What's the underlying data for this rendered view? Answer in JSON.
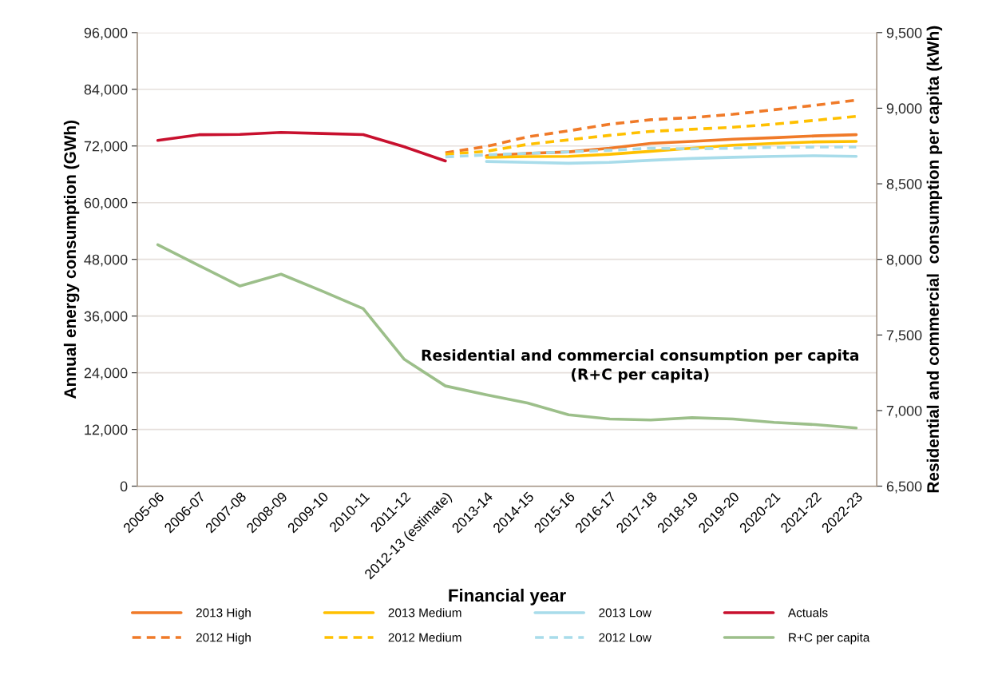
{
  "chart_data": {
    "type": "line",
    "xlabel": "Financial year",
    "ylabel": "Annual energy consumption (GWh)",
    "y2label": "Residential and commercial  consumption per capita (kWh)",
    "categories": [
      "2005-06",
      "2006-07",
      "2007-08",
      "2008-09",
      "2009-10",
      "2010-11",
      "2011-12",
      "2012-13 (estimate)",
      "2013-14",
      "2014-15",
      "2015-16",
      "2016-17",
      "2017-18",
      "2018-19",
      "2019-20",
      "2020-21",
      "2021-22",
      "2022-23"
    ],
    "series": [
      {
        "name": "2013 High",
        "color": "#f07a28",
        "line_style": "solid",
        "values": [
          null,
          null,
          null,
          null,
          null,
          null,
          null,
          null,
          69940,
          70440,
          70760,
          71530,
          72540,
          72980,
          73430,
          73760,
          74130,
          74380
        ]
      },
      {
        "name": "2013 Medium",
        "color": "#ffc000",
        "line_style": "solid",
        "values": [
          null,
          null,
          null,
          null,
          null,
          null,
          null,
          null,
          69610,
          69750,
          69800,
          70250,
          70880,
          71530,
          72170,
          72540,
          72860,
          72980
        ]
      },
      {
        "name": "2013 Low",
        "color": "#a8dcea",
        "line_style": "solid",
        "values": [
          null,
          null,
          null,
          null,
          null,
          null,
          null,
          null,
          68720,
          68530,
          68350,
          68530,
          68970,
          69360,
          69610,
          69800,
          69940,
          69800
        ]
      },
      {
        "name": "Actuals",
        "color": "#c8102e",
        "line_style": "solid",
        "values": [
          73180,
          74380,
          74450,
          74870,
          74650,
          74420,
          71830,
          68840,
          null,
          null,
          null,
          null,
          null,
          null,
          null,
          null,
          null,
          null
        ]
      },
      {
        "name": "2012 High",
        "color": "#f07a28",
        "line_style": "dashed",
        "values": [
          null,
          null,
          null,
          null,
          null,
          null,
          null,
          70560,
          71900,
          73940,
          75210,
          76610,
          77560,
          78010,
          78710,
          79670,
          80620,
          81700
        ]
      },
      {
        "name": "2012 Medium",
        "color": "#ffc000",
        "line_style": "dashed",
        "values": [
          null,
          null,
          null,
          null,
          null,
          null,
          null,
          70250,
          70880,
          72350,
          73300,
          74260,
          75090,
          75530,
          75970,
          76610,
          77440,
          78270
        ]
      },
      {
        "name": "2012 Low",
        "color": "#a8dcea",
        "line_style": "dashed",
        "values": [
          null,
          null,
          null,
          null,
          null,
          null,
          null,
          69680,
          70120,
          70440,
          70760,
          71090,
          71530,
          71390,
          71530,
          71710,
          71780,
          71780
        ]
      },
      {
        "name": "R+C per capita",
        "color": "#9cbf8a",
        "line_style": "solid",
        "axis": "y2",
        "values": [
          8097,
          7960,
          7824,
          7902,
          7790,
          7674,
          7339,
          7163,
          7104,
          7050,
          6972,
          6944,
          6938,
          6953,
          6944,
          6922,
          6907,
          6885
        ]
      }
    ],
    "ylim": [
      0,
      96000
    ],
    "yticks": [
      {
        "value": 0,
        "label": "0"
      },
      {
        "value": 12000,
        "label": "12,000"
      },
      {
        "value": 24000,
        "label": "24,000"
      },
      {
        "value": 36000,
        "label": "36,000"
      },
      {
        "value": 48000,
        "label": "48,000"
      },
      {
        "value": 60000,
        "label": "60,000"
      },
      {
        "value": 72000,
        "label": "72,000"
      },
      {
        "value": 84000,
        "label": "84,000"
      },
      {
        "value": 96000,
        "label": "96,000"
      }
    ],
    "y2lim": [
      6500,
      9500
    ],
    "y2ticks": [
      {
        "value": 6500,
        "label": "6,500"
      },
      {
        "value": 7000,
        "label": "7,000"
      },
      {
        "value": 7500,
        "label": "7,500"
      },
      {
        "value": 8000,
        "label": "8,000"
      },
      {
        "value": 8500,
        "label": "8,500"
      },
      {
        "value": 9000,
        "label": "9,000"
      },
      {
        "value": 9500,
        "label": "9,500"
      }
    ],
    "annotations": [
      "Residential and commercial consumption per capita\n(R+C per capita)"
    ],
    "grid": "y",
    "legend": "bottom",
    "marker": "none"
  }
}
